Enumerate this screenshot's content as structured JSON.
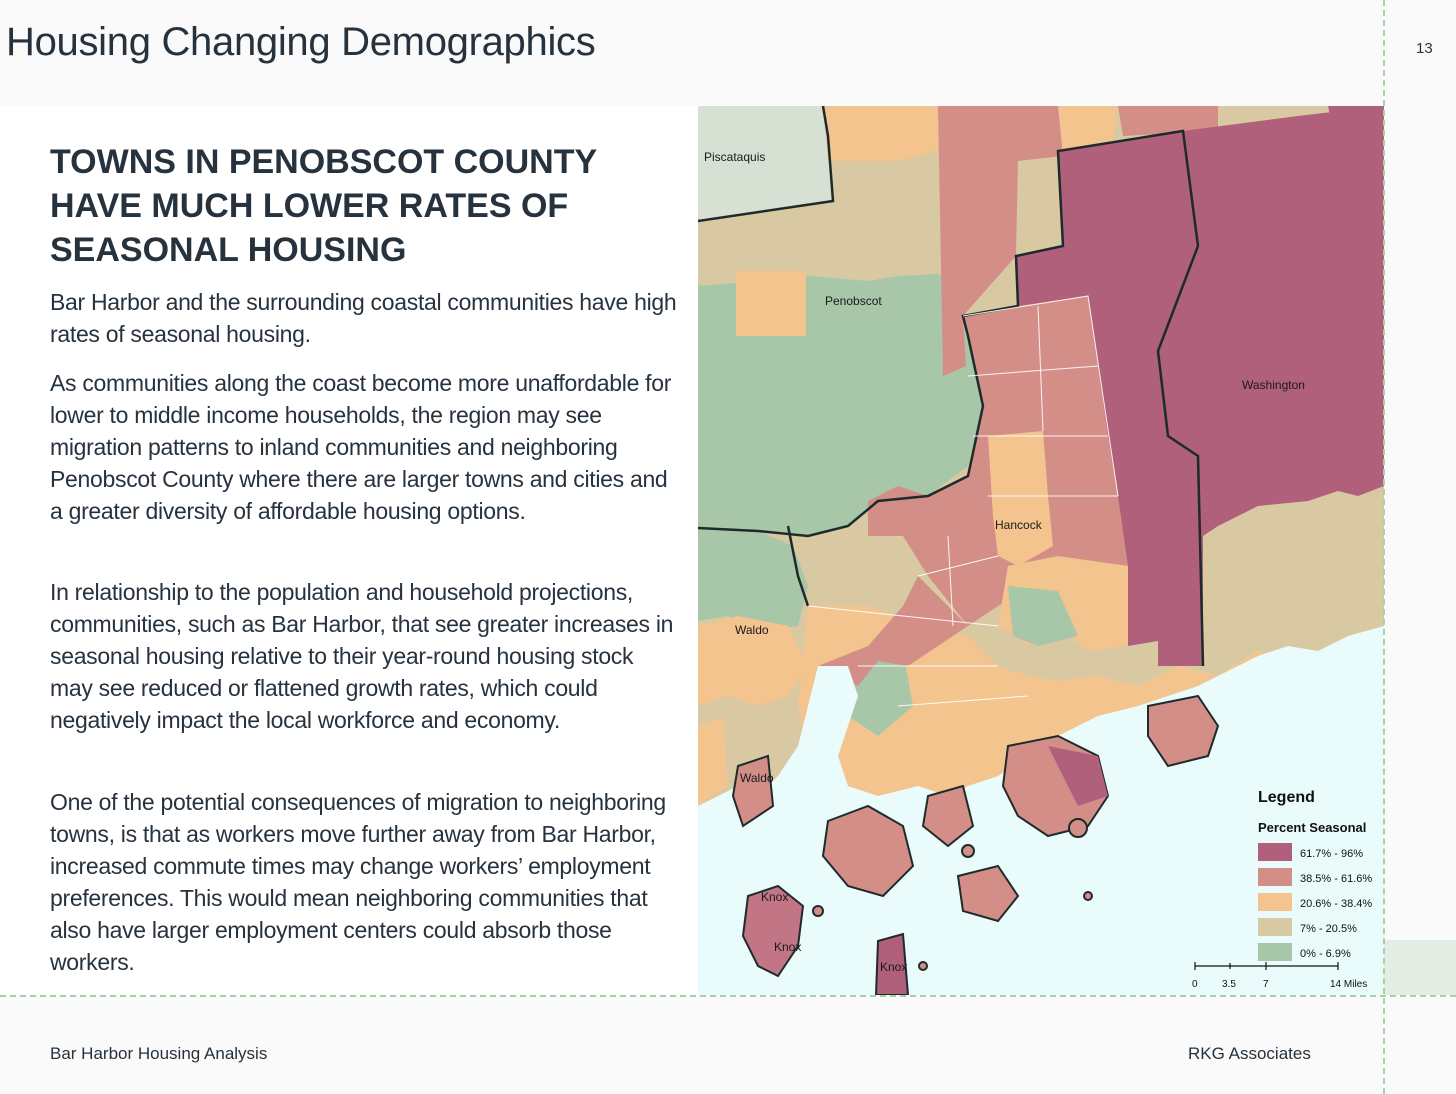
{
  "header": {
    "title": "Housing Changing Demographics",
    "page_number": "13"
  },
  "main": {
    "headline": "TOWNS IN PENOBSCOT COUNTY HAVE MUCH LOWER RATES OF SEASONAL HOUSING",
    "paragraphs": [
      "Bar Harbor and the surrounding coastal communities have high rates of seasonal housing.",
      "As communities along the coast become more unaffordable for lower to middle income households, the region may see migration patterns to inland communities and neighboring Penobscot County where there are larger towns and cities and a greater diversity of affordable housing options.",
      "In relationship to the population and household projections, communities, such as Bar Harbor, that see greater increases in seasonal housing relative to their year-round housing stock may see reduced or flattened growth rates, which could negatively impact the local workforce and economy.",
      "One of the potential consequences of migration to neighboring towns, is that as workers move further away from Bar Harbor, increased commute times may change workers’ employment preferences. This would mean neighboring communities that also have larger employment centers could absorb those workers."
    ]
  },
  "map": {
    "labels": {
      "piscataquis": "Piscataquis",
      "penobscot": "Penobscot",
      "washington": "Washington",
      "hancock": "Hancock",
      "waldo_1": "Waldo",
      "waldo_2": "Waldo",
      "knox_1": "Knox",
      "knox_2": "Knox",
      "knox_3": "Knox"
    },
    "legend": {
      "title": "Legend",
      "subtitle": "Percent Seasonal",
      "items": [
        {
          "label": "61.7% - 96%",
          "color": "#b0607b"
        },
        {
          "label": "38.5% - 61.6%",
          "color": "#d48e88"
        },
        {
          "label": "20.6% - 38.4%",
          "color": "#f4c48f"
        },
        {
          "label": "7% - 20.5%",
          "color": "#d9c9a3"
        },
        {
          "label": "0% - 6.9%",
          "color": "#a8c6a8"
        }
      ]
    },
    "scale": {
      "ticks": [
        "0",
        "3.5",
        "7",
        "14 Miles"
      ]
    },
    "colors": {
      "water": "#e9fbfb",
      "county_border": "#1d2b2b"
    }
  },
  "footer": {
    "left": "Bar Harbor Housing Analysis",
    "right": "RKG Associates"
  }
}
